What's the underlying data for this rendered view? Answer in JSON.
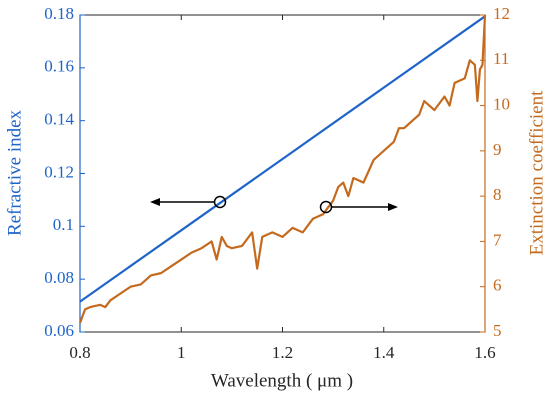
{
  "chart_data": {
    "type": "line",
    "xlabel": "Wavelength ( μm )",
    "ylabel": "Refractive index",
    "y2label": "Extinction coefficient",
    "xlim": [
      0.8,
      1.6
    ],
    "xticks": [
      0.8,
      1,
      1.2,
      1.4,
      1.6
    ],
    "ylim": [
      0.06,
      0.18
    ],
    "yticks": [
      0.06,
      0.08,
      0.1,
      0.12,
      0.14,
      0.16,
      0.18
    ],
    "y2lim": [
      5,
      12
    ],
    "y2ticks": [
      5,
      6,
      7,
      8,
      9,
      10,
      11,
      12
    ],
    "series": [
      {
        "color": "#1f64c8",
        "x": [
          0.8,
          1.0,
          1.2,
          1.4,
          1.6
        ],
        "values": [
          0.0715,
          0.0985,
          0.1255,
          0.1525,
          0.1795
        ]
      },
      {
        "color": "#c46a1e",
        "axis": "y2",
        "x": [
          0.8,
          0.81,
          0.82,
          0.84,
          0.85,
          0.86,
          0.88,
          0.9,
          0.92,
          0.94,
          0.96,
          0.98,
          1.0,
          1.02,
          1.04,
          1.06,
          1.07,
          1.08,
          1.09,
          1.1,
          1.12,
          1.14,
          1.15,
          1.16,
          1.18,
          1.2,
          1.22,
          1.24,
          1.26,
          1.28,
          1.3,
          1.31,
          1.32,
          1.33,
          1.34,
          1.36,
          1.38,
          1.4,
          1.42,
          1.43,
          1.44,
          1.46,
          1.47,
          1.48,
          1.5,
          1.52,
          1.53,
          1.54,
          1.56,
          1.57,
          1.58,
          1.585,
          1.59,
          1.595,
          1.6
        ],
        "values": [
          5.2,
          5.5,
          5.55,
          5.6,
          5.55,
          5.7,
          5.85,
          6.0,
          6.05,
          6.25,
          6.3,
          6.45,
          6.6,
          6.75,
          6.85,
          7.0,
          6.6,
          7.1,
          6.9,
          6.85,
          6.9,
          7.2,
          6.4,
          7.1,
          7.2,
          7.1,
          7.3,
          7.2,
          7.5,
          7.6,
          7.9,
          8.2,
          8.3,
          8.0,
          8.4,
          8.3,
          8.8,
          9.0,
          9.2,
          9.5,
          9.5,
          9.7,
          9.8,
          10.1,
          9.9,
          10.2,
          10.0,
          10.5,
          10.6,
          11.0,
          10.9,
          10.1,
          10.8,
          10.9,
          12.0
        ]
      }
    ]
  }
}
